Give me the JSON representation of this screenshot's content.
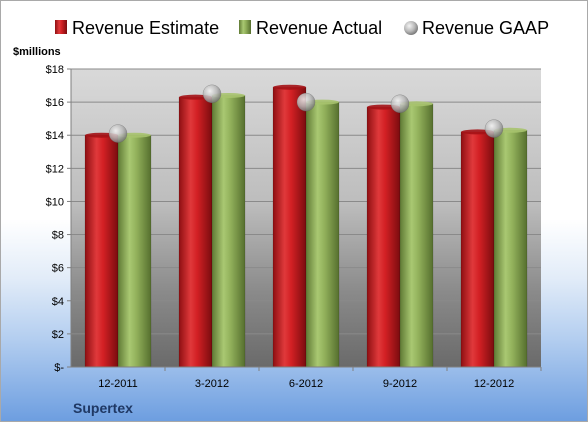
{
  "chart_data": {
    "type": "bar",
    "company": "Supertex",
    "unit_label": "$millions",
    "categories": [
      "12-2011",
      "3-2012",
      "6-2012",
      "9-2012",
      "12-2012"
    ],
    "series": [
      {
        "name": "Revenue Estimate",
        "kind": "bar",
        "color": "#c8191e",
        "values": [
          14.0,
          16.3,
          16.9,
          15.7,
          14.2
        ]
      },
      {
        "name": "Revenue Actual",
        "kind": "bar",
        "color": "#8cac55",
        "values": [
          14.0,
          16.4,
          16.0,
          15.9,
          14.3
        ]
      },
      {
        "name": "Revenue GAAP",
        "kind": "marker",
        "color": "#b4b4b4",
        "values": [
          14.1,
          16.5,
          16.0,
          15.9,
          14.4
        ]
      }
    ],
    "y_ticks": [
      "$-",
      "$2",
      "$4",
      "$6",
      "$8",
      "$10",
      "$12",
      "$14",
      "$16",
      "$18"
    ],
    "ylim": [
      0,
      18
    ],
    "grid": true,
    "legend_position": "top"
  }
}
